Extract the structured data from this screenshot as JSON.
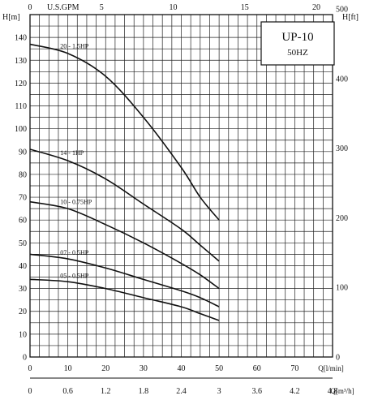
{
  "chart_data": {
    "type": "line",
    "title": "UP-10",
    "subtitle": "50HZ",
    "ylabel_left": "H[m]",
    "ylabel_right": "H[ft]",
    "xlabel_top": "U.S.GPM",
    "xlabel_bottom_1": "Q[l/min]",
    "xlabel_bottom_2": "Q[m³/h]",
    "xlim": [
      0,
      80
    ],
    "ylim": [
      0,
      150
    ],
    "grid": true,
    "ticks": {
      "y_left": [
        "0",
        "10",
        "20",
        "30",
        "40",
        "50",
        "60",
        "70",
        "80",
        "90",
        "100",
        "110",
        "120",
        "130",
        "140"
      ],
      "y_right": [
        "0",
        "100",
        "200",
        "300",
        "400",
        "500"
      ],
      "x_top": [
        "0",
        "5",
        "10",
        "15",
        "20"
      ],
      "x_bottom_lmin": [
        "0",
        "10",
        "20",
        "30",
        "40",
        "50",
        "60",
        "70"
      ],
      "x_bottom_m3h": [
        "0",
        "0.6",
        "1.2",
        "1.8",
        "2.4",
        "3",
        "3.6",
        "4.2",
        "4.8"
      ]
    },
    "series": [
      {
        "name": "20 - 1.5HP",
        "x": [
          0,
          10,
          20,
          30,
          40,
          45,
          50
        ],
        "y": [
          137,
          133,
          123,
          105,
          83,
          70,
          60
        ]
      },
      {
        "name": "14 - 1HP",
        "x": [
          0,
          10,
          20,
          30,
          40,
          45,
          50
        ],
        "y": [
          91,
          86,
          78,
          67,
          56,
          49,
          42
        ]
      },
      {
        "name": "10 - 0.75HP",
        "x": [
          0,
          10,
          20,
          30,
          40,
          45,
          50
        ],
        "y": [
          68,
          65,
          58,
          50,
          41,
          36,
          30
        ]
      },
      {
        "name": "07 - 0.5HP",
        "x": [
          0,
          10,
          20,
          30,
          40,
          45,
          50
        ],
        "y": [
          45,
          43,
          39,
          34,
          29,
          26,
          22
        ]
      },
      {
        "name": "05 - 0.5HP",
        "x": [
          0,
          10,
          20,
          30,
          40,
          45,
          50
        ],
        "y": [
          34,
          33,
          30,
          26,
          22,
          19,
          16
        ]
      }
    ]
  }
}
